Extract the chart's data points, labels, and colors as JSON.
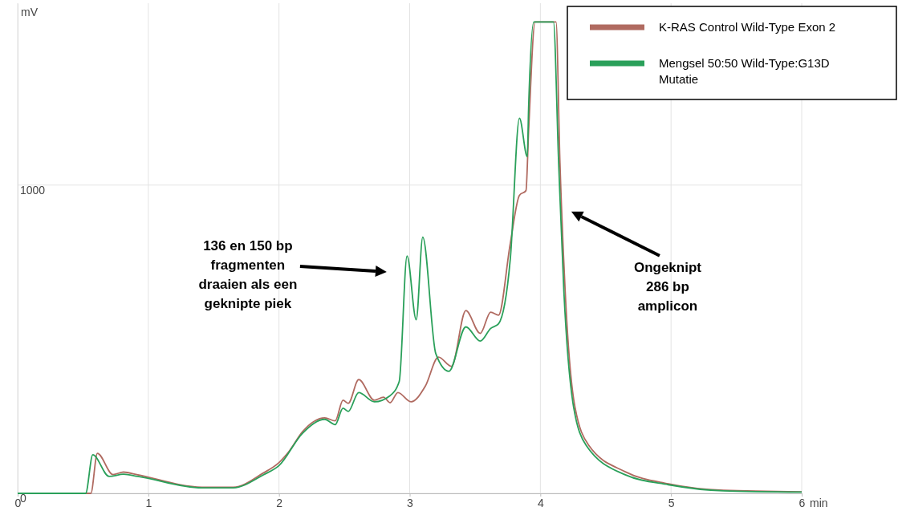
{
  "chart_data": {
    "type": "line",
    "xlabel": "min",
    "ylabel": "mV",
    "xlim": [
      0,
      6
    ],
    "ylim": [
      0,
      1590
    ],
    "xticks": [
      0,
      1,
      2,
      3,
      4,
      5,
      6
    ],
    "yticks": [
      0,
      1000
    ],
    "grid": true,
    "legend": "top right",
    "marker": "none",
    "line_style": "solid",
    "series": [
      {
        "name": "K-RAS Control Wild-Type Exon 2",
        "color": "#b06a60",
        "x": [
          0,
          0.56,
          0.61,
          0.73,
          0.81,
          0.92,
          1.41,
          1.65,
          1.88,
          2.0,
          2.08,
          2.18,
          2.35,
          2.43,
          2.49,
          2.53,
          2.61,
          2.73,
          2.8,
          2.85,
          2.91,
          3.01,
          3.12,
          3.22,
          3.32,
          3.43,
          3.54,
          3.62,
          3.68,
          3.77,
          3.84,
          3.89,
          3.91,
          3.96,
          4.12,
          4.15,
          4.19,
          4.26,
          4.37,
          4.65,
          4.98,
          5.4,
          6.0
        ],
        "values": [
          0,
          0,
          130,
          61,
          69,
          60,
          20,
          20,
          66,
          100,
          138,
          200,
          245,
          235,
          302,
          292,
          369,
          302,
          312,
          294,
          327,
          297,
          348,
          442,
          412,
          593,
          519,
          588,
          578,
          811,
          967,
          982,
          1174,
          1529,
          1529,
          1072,
          655,
          292,
          156,
          70,
          31,
          10,
          5
        ]
      },
      {
        "name": "Mengsel 50:50 Wild-Type:G13D Mutatie",
        "color": "#2aa05a",
        "x": [
          0,
          0.52,
          0.575,
          0.7,
          0.81,
          0.92,
          1.41,
          1.65,
          1.88,
          2.0,
          2.18,
          2.35,
          2.43,
          2.49,
          2.53,
          2.61,
          2.73,
          2.85,
          2.92,
          2.98,
          3.05,
          3.1,
          3.2,
          3.3,
          3.43,
          3.54,
          3.62,
          3.68,
          3.77,
          3.84,
          3.9,
          3.91,
          3.95,
          4.1,
          4.14,
          4.18,
          4.25,
          4.35,
          4.65,
          4.98,
          5.4,
          6.0
        ],
        "values": [
          0,
          0,
          125,
          55,
          62,
          55,
          18,
          18,
          60,
          90,
          195,
          240,
          223,
          276,
          266,
          327,
          297,
          317,
          363,
          770,
          563,
          831,
          453,
          396,
          540,
          494,
          535,
          550,
          760,
          1217,
          1092,
          1248,
          1529,
          1529,
          1072,
          655,
          292,
          156,
          60,
          28,
          8,
          4
        ]
      }
    ],
    "annotations": [
      "136 en 150 bp\nfragmenten\ndraaien als een\ngeknipte piek",
      "Ongeknipt\n286 bp\namplicon"
    ]
  }
}
